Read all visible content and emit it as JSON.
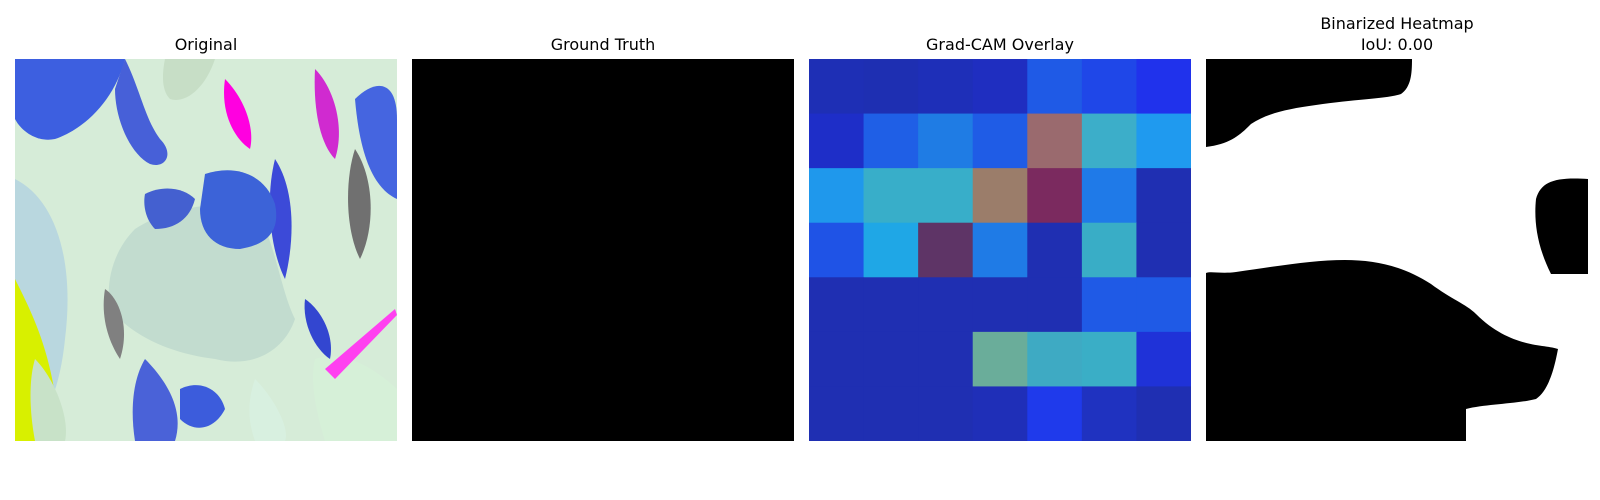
{
  "panels": {
    "original": {
      "title": "Original"
    },
    "ground_truth": {
      "title": "Ground Truth"
    },
    "gradcam": {
      "title": "Grad-CAM Overlay",
      "grid": [
        [
          "#1e2fb5",
          "#1e2fb2",
          "#1e2fb8",
          "#1f2ec0",
          "#1f5ae6",
          "#1f47e8",
          "#2032ec"
        ],
        [
          "#1e2ec8",
          "#1f5fe6",
          "#1f7ce4",
          "#1f5ce6",
          "#9a6a6e",
          "#3caec9",
          "#1f9aef"
        ],
        [
          "#1f98ec",
          "#38aec9",
          "#38aec9",
          "#9b7d6a",
          "#7b2a5f",
          "#1f7ae8",
          "#1f2fb2"
        ],
        [
          "#1f53e6",
          "#1fa7e6",
          "#5e3466",
          "#1f7be6",
          "#1f2fb2",
          "#39adc6",
          "#1f2fb2"
        ],
        [
          "#1f2fb2",
          "#1f2fb2",
          "#1f2fb2",
          "#1f2fb2",
          "#1f2fb2",
          "#1f5ae6",
          "#1f5ae6"
        ],
        [
          "#1f2fb2",
          "#1f2fb2",
          "#1f2fb2",
          "#6aad9a",
          "#3eaac3",
          "#3aaec6",
          "#1f32d8"
        ],
        [
          "#1f2fb2",
          "#1f2fb2",
          "#1f2fb2",
          "#1f2fb8",
          "#1f3aeb",
          "#1f32c0",
          "#1f2fb2"
        ]
      ]
    },
    "binarized": {
      "title": "Binarized Heatmap\nIoU: 0.00"
    }
  }
}
